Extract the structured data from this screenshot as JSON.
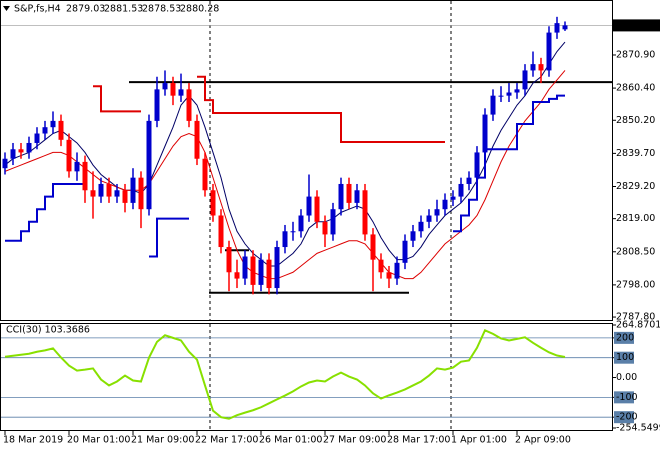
{
  "chart_data": [
    {
      "type": "candlestick",
      "symbol": "S&P,fs,H4",
      "categories": [
        "18 Mar 2019",
        null,
        null,
        null,
        null,
        null,
        null,
        null,
        "20 Mar 01:00",
        null,
        null,
        null,
        null,
        null,
        null,
        null,
        "21 Mar 09:00",
        null,
        null,
        null,
        null,
        null,
        null,
        null,
        "22 Mar 17:00",
        null,
        null,
        null,
        null,
        null,
        null,
        null,
        "26 Mar 01:00",
        null,
        null,
        null,
        null,
        null,
        null,
        null,
        "27 Mar 09:00",
        null,
        null,
        null,
        null,
        null,
        null,
        null,
        "28 Mar 17:00",
        null,
        null,
        null,
        null,
        null,
        null,
        null,
        "1 Apr 01:00",
        null,
        null,
        null,
        null,
        null,
        null,
        null,
        "2 Apr 09:00",
        null,
        null,
        null,
        null,
        null,
        null
      ],
      "open": [
        2835,
        2838,
        2841,
        2840,
        2843,
        2846,
        2848,
        2850,
        2844,
        2834,
        2837,
        2828,
        2826,
        2830,
        2826,
        2828,
        2824,
        2832,
        2822,
        2850,
        2860,
        2862,
        2858,
        2860,
        2850,
        2838,
        2828,
        2820,
        2810,
        2802,
        2800,
        2807,
        2798,
        2806,
        2797,
        2810,
        2815,
        2815,
        2820,
        2826,
        2818,
        2814,
        2822,
        2830,
        2824,
        2828,
        2814,
        2806,
        2802,
        2800,
        2805,
        2812,
        2815,
        2818,
        2820,
        2822,
        2825,
        2826,
        2830,
        2832,
        2840,
        2852,
        2858,
        2858,
        2859,
        2860,
        2866,
        2868,
        2866,
        2878,
        2879.03
      ],
      "high": [
        2840,
        2843,
        2843,
        2845,
        2848,
        2850,
        2853,
        2852,
        2846,
        2840,
        2839,
        2834,
        2832,
        2832,
        2830,
        2830,
        2835,
        2834,
        2852,
        2864,
        2866,
        2864,
        2865,
        2862,
        2852,
        2840,
        2830,
        2822,
        2812,
        2806,
        2809,
        2809,
        2808,
        2808,
        2812,
        2817,
        2818,
        2822,
        2833,
        2828,
        2820,
        2824,
        2832,
        2832,
        2830,
        2830,
        2816,
        2808,
        2804,
        2807,
        2814,
        2817,
        2820,
        2822,
        2825,
        2827,
        2828,
        2832,
        2834,
        2842,
        2854,
        2860,
        2861,
        2862,
        2862,
        2868,
        2872,
        2870,
        2880,
        2883,
        2881.53
      ],
      "low": [
        2833,
        2836,
        2838,
        2838,
        2841,
        2844,
        2846,
        2842,
        2832,
        2831,
        2824,
        2819,
        2824,
        2824,
        2824,
        2821,
        2822,
        2816,
        2820,
        2848,
        2858,
        2855,
        2856,
        2848,
        2836,
        2826,
        2818,
        2808,
        2796,
        2797,
        2798,
        2795,
        2796,
        2795,
        2795,
        2808,
        2812,
        2813,
        2818,
        2816,
        2810,
        2812,
        2820,
        2822,
        2822,
        2812,
        2796,
        2800,
        2797,
        2798,
        2803,
        2810,
        2813,
        2816,
        2818,
        2820,
        2823,
        2824,
        2828,
        2830,
        2838,
        2850,
        2856,
        2856,
        2857,
        2858,
        2864,
        2862,
        2864,
        2876,
        2878.53
      ],
      "close": [
        2838,
        2841,
        2840,
        2843,
        2846,
        2848,
        2850,
        2844,
        2834,
        2837,
        2828,
        2826,
        2830,
        2826,
        2828,
        2824,
        2832,
        2822,
        2850,
        2860,
        2862,
        2858,
        2860,
        2850,
        2838,
        2828,
        2820,
        2810,
        2802,
        2800,
        2807,
        2798,
        2806,
        2797,
        2810,
        2815,
        2815,
        2820,
        2826,
        2818,
        2814,
        2822,
        2830,
        2824,
        2828,
        2814,
        2806,
        2802,
        2800,
        2805,
        2812,
        2815,
        2818,
        2820,
        2822,
        2825,
        2826,
        2830,
        2832,
        2840,
        2852,
        2858,
        2858,
        2859,
        2860,
        2866,
        2868,
        2866,
        2878,
        2881,
        2880.28
      ],
      "up_color": "#0000cc",
      "down_color": "#ff0000",
      "lines": [
        {
          "color": "#000066",
          "style": "line",
          "values": [
            2836,
            2838,
            2839,
            2840,
            2842,
            2844,
            2846,
            2847,
            2845,
            2843,
            2840,
            2836,
            2833,
            2831,
            2829,
            2828,
            2828,
            2827,
            2830,
            2836,
            2842,
            2848,
            2855,
            2858,
            2855,
            2848,
            2840,
            2832,
            2822,
            2815,
            2811,
            2808,
            2806,
            2804,
            2804,
            2806,
            2808,
            2811,
            2816,
            2818,
            2818,
            2819,
            2821,
            2822,
            2823,
            2822,
            2818,
            2813,
            2809,
            2806,
            2806,
            2807,
            2810,
            2814,
            2817,
            2820,
            2822,
            2824,
            2827,
            2831,
            2836,
            2842,
            2847,
            2851,
            2855,
            2858,
            2862,
            2864,
            2868,
            2872,
            2875
          ]
        },
        {
          "color": "#dd0000",
          "style": "line",
          "values": [
            2834,
            2835,
            2836,
            2837,
            2838,
            2839,
            2840,
            2840,
            2839,
            2837,
            2835,
            2833,
            2831,
            2830,
            2829,
            2828,
            2828,
            2828,
            2830,
            2834,
            2838,
            2842,
            2845,
            2846,
            2845,
            2840,
            2832,
            2824,
            2816,
            2809,
            2804,
            2802,
            2801,
            2800,
            2800,
            2801,
            2802,
            2804,
            2806,
            2808,
            2809,
            2810,
            2811,
            2812,
            2812,
            2811,
            2808,
            2805,
            2802,
            2801,
            2800,
            2800,
            2802,
            2805,
            2808,
            2811,
            2813,
            2815,
            2817,
            2820,
            2825,
            2831,
            2837,
            2842,
            2846,
            2850,
            2853,
            2856,
            2860,
            2863,
            2866
          ]
        },
        {
          "color": "#dd0000",
          "style": "step",
          "values": [
            null,
            null,
            null,
            null,
            null,
            null,
            null,
            null,
            null,
            null,
            null,
            2861,
            2853,
            2853,
            2853,
            2853,
            2853,
            2853,
            null,
            null,
            null,
            null,
            null,
            null,
            2864,
            2856.6,
            2852.5,
            2852.5,
            2852.5,
            2852.5,
            2852.5,
            2852.5,
            2852.5,
            2852.5,
            2852.5,
            2852.5,
            2852.5,
            2852.5,
            2852.5,
            2852.5,
            2852.5,
            2852.5,
            2843.3,
            2843.3,
            2843.3,
            2843.3,
            2843.3,
            2843.3,
            2843.3,
            2843.3,
            2843.3,
            2843.3,
            2843.3,
            2843.3,
            2843.3,
            2843.3,
            null,
            null,
            null,
            null,
            null,
            null,
            null,
            null,
            null,
            null,
            null,
            null,
            null,
            null,
            null
          ]
        },
        {
          "color": "#0000cc",
          "style": "step",
          "values": [
            2812,
            2812,
            2815,
            2818,
            2822,
            2826,
            2830,
            2830,
            2830,
            2830,
            2830,
            null,
            null,
            null,
            null,
            null,
            null,
            null,
            2807,
            2819,
            2819,
            2819,
            2819,
            2819,
            null,
            null,
            null,
            null,
            null,
            null,
            null,
            null,
            null,
            null,
            null,
            null,
            null,
            null,
            null,
            null,
            null,
            null,
            null,
            null,
            null,
            null,
            null,
            null,
            null,
            null,
            null,
            null,
            null,
            null,
            null,
            null,
            2815,
            2820,
            2825,
            2832,
            2841,
            2841,
            2841,
            2841,
            2849,
            2849,
            2856,
            2856,
            2857,
            2858,
            2858
          ]
        }
      ],
      "levels": [
        {
          "value": 2862.3,
          "from": 16,
          "to": 70
        },
        {
          "value": 2795.5,
          "from": 26,
          "to": 50
        },
        {
          "value": 2809,
          "from": 28,
          "to": 30
        }
      ],
      "ylim": [
        2787.5,
        2887.7
      ],
      "yticks": [
        {
          "value": 2870.9,
          "label": "2870.90"
        },
        {
          "value": 2860.4,
          "label": "2860.40"
        },
        {
          "value": 2850.2,
          "label": "2850.20"
        },
        {
          "value": 2839.7,
          "label": "2839.70"
        },
        {
          "value": 2829.2,
          "label": "2829.20"
        },
        {
          "value": 2819,
          "label": "2819.00"
        },
        {
          "value": 2808.5,
          "label": "2808.50"
        },
        {
          "value": 2798,
          "label": "2798.00"
        },
        {
          "value": 2787.8,
          "label": "2787.80"
        }
      ]
    },
    {
      "type": "line",
      "label": "CCI(30) 103.3686",
      "color": "#88e000",
      "values": [
        105,
        110,
        115,
        120,
        130,
        137,
        147,
        101,
        60,
        35,
        40,
        46,
        -10,
        -40,
        -20,
        10,
        -15,
        -20,
        100,
        180,
        213,
        200,
        187,
        130,
        90,
        -40,
        -167,
        -200,
        -208,
        -190,
        -177,
        -165,
        -150,
        -130,
        -110,
        -91,
        -70,
        -45,
        -25,
        -15,
        -20,
        5,
        25,
        5,
        -10,
        -40,
        -80,
        -106,
        -90,
        -76,
        -60,
        -40,
        -20,
        10,
        46,
        40,
        50,
        80,
        86,
        150,
        238,
        220,
        197,
        187,
        195,
        203,
        175,
        150,
        127,
        111,
        103.3686
      ],
      "ylim": [
        -254.5499,
        264.8701
      ],
      "yticks": [
        264.8701,
        200,
        100,
        {
          "value": 0,
          "label": "0.00"
        },
        -100,
        -200,
        -254.5499
      ],
      "levels": [
        200,
        100,
        -100,
        -200
      ],
      "level_color": "#5a7fa8"
    }
  ]
}
